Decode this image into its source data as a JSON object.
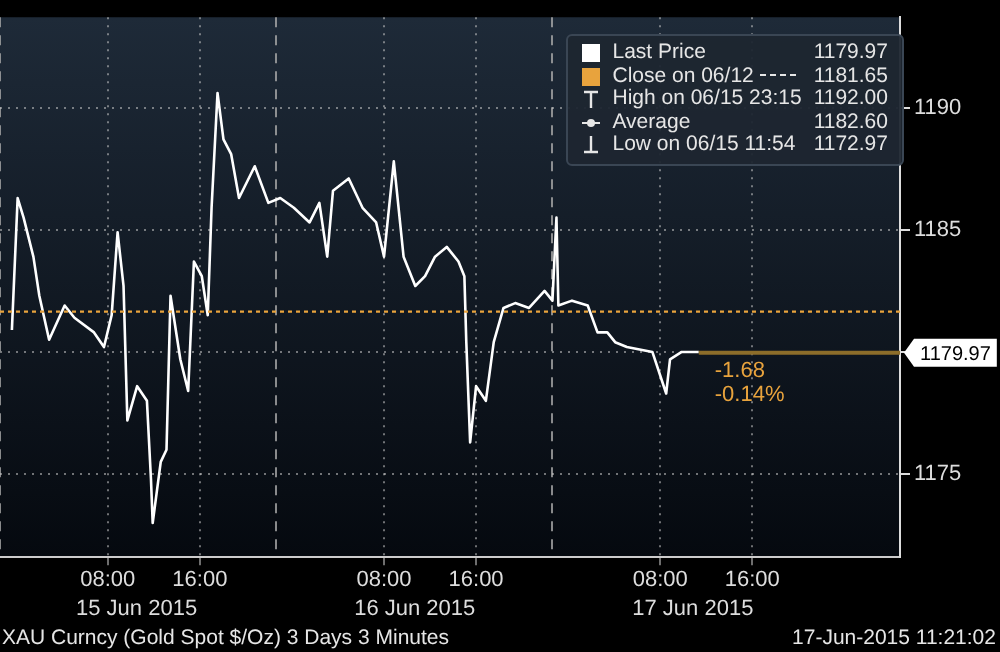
{
  "chart_data": {
    "type": "line",
    "title": "XAU Curncy (Gold Spot $/Oz) 3 Days 3 Minutes",
    "subtitle": "17-Jun-2015 11:21:02",
    "x": [
      "2015-06-14T23:40",
      "2015-06-15T00:10",
      "2015-06-15T00:41",
      "2015-06-15T01:32",
      "2015-06-15T02:03",
      "2015-06-15T02:54",
      "2015-06-15T04:15",
      "2015-06-15T05:06",
      "2015-06-15T06:48",
      "2015-06-15T07:40",
      "2015-06-15T08:20",
      "2015-06-15T08:51",
      "2015-06-15T09:22",
      "2015-06-15T09:42",
      "2015-06-15T10:33",
      "2015-06-15T11:24",
      "2015-06-15T11:45",
      "2015-06-15T11:54",
      "2015-06-15T12:36",
      "2015-06-15T13:06",
      "2015-06-15T13:27",
      "2015-06-15T14:18",
      "2015-06-15T14:59",
      "2015-06-15T15:29",
      "2015-06-15T16:10",
      "2015-06-15T16:41",
      "2015-06-15T17:01",
      "2015-06-15T17:32",
      "2015-06-15T18:03",
      "2015-06-15T18:43",
      "2015-06-15T19:24",
      "2015-06-15T20:46",
      "2015-06-15T21:57",
      "2015-06-15T22:59",
      "2015-06-16T00:10",
      "2015-06-16T01:32",
      "2015-06-16T02:23",
      "2015-06-16T03:04",
      "2015-06-16T03:34",
      "2015-06-16T04:56",
      "2015-06-16T06:08",
      "2015-06-16T07:19",
      "2015-06-16T08:00",
      "2015-06-16T08:51",
      "2015-06-16T09:42",
      "2015-06-16T10:43",
      "2015-06-16T11:34",
      "2015-06-16T12:26",
      "2015-06-16T13:27",
      "2015-06-16T14:28",
      "2015-06-16T14:59",
      "2015-06-16T15:09",
      "2015-06-16T15:29",
      "2015-06-16T16:00",
      "2015-06-16T16:51",
      "2015-06-16T17:32",
      "2015-06-16T18:23",
      "2015-06-16T19:24",
      "2015-06-16T20:36",
      "2015-06-16T21:57",
      "2015-06-16T22:38",
      "2015-06-16T22:59",
      "2015-06-16T23:09",
      "2015-06-17T00:20",
      "2015-06-17T01:42",
      "2015-06-17T02:33",
      "2015-06-17T03:24",
      "2015-06-17T04:05",
      "2015-06-17T05:06",
      "2015-06-17T07:19",
      "2015-06-17T08:31",
      "2015-06-17T08:51",
      "2015-06-17T09:52",
      "2015-06-17T11:21"
    ],
    "series": [
      {
        "name": "Last Price",
        "color": "#ffffff",
        "values": [
          1180.9,
          1186.3,
          1185.5,
          1183.9,
          1182.3,
          1180.5,
          1181.9,
          1181.4,
          1180.8,
          1180.2,
          1181.5,
          1184.9,
          1182.7,
          1177.2,
          1178.6,
          1178.0,
          1174.8,
          1173.0,
          1175.5,
          1176.0,
          1182.3,
          1179.7,
          1178.4,
          1183.7,
          1183.1,
          1181.5,
          1185.9,
          1190.6,
          1188.7,
          1188.1,
          1186.3,
          1187.6,
          1186.1,
          1186.3,
          1185.9,
          1185.3,
          1186.1,
          1183.9,
          1186.6,
          1187.1,
          1185.9,
          1185.3,
          1183.9,
          1187.8,
          1183.9,
          1182.7,
          1183.1,
          1183.9,
          1184.3,
          1183.7,
          1183.1,
          1180.4,
          1176.3,
          1178.6,
          1178.0,
          1180.4,
          1181.8,
          1182.0,
          1181.8,
          1182.5,
          1182.1,
          1185.5,
          1181.9,
          1182.1,
          1181.9,
          1180.8,
          1180.8,
          1180.4,
          1180.2,
          1180.0,
          1178.3,
          1179.7,
          1180.0,
          1180.0
        ]
      }
    ],
    "xlim": [
      "2015-06-14T22:38",
      "2015-06-18T04:50"
    ],
    "xticks": [
      {
        "value": "2015-06-15T08:00",
        "label": "08:00"
      },
      {
        "value": "2015-06-15T16:00",
        "label": "16:00"
      },
      {
        "value": "2015-06-16T08:00",
        "label": "08:00"
      },
      {
        "value": "2015-06-16T16:00",
        "label": "16:00"
      },
      {
        "value": "2015-06-17T08:00",
        "label": "08:00"
      },
      {
        "value": "2015-06-17T16:00",
        "label": "16:00"
      }
    ],
    "x2lim": [
      "2015-06-14T22:38",
      "2015-06-18T04:50"
    ],
    "x2ticks": [
      {
        "value": "2015-06-14T22:38",
        "label": null
      },
      {
        "value": "2015-06-15T10:30",
        "label": "15 Jun 2015"
      },
      {
        "value": "2015-06-15T22:38",
        "label": null
      },
      {
        "value": "2015-06-16T10:40",
        "label": "16 Jun 2015"
      },
      {
        "value": "2015-06-16T22:38",
        "label": null
      },
      {
        "value": "2015-06-17T10:50",
        "label": "17 Jun 2015"
      }
    ],
    "ylim": [
      1171.6,
      1193.7
    ],
    "yticks": [
      1175,
      {
        "value": 1180,
        "label": null
      },
      1185,
      1190
    ],
    "grid": true,
    "legend": "top right",
    "marker": "none",
    "line_style": "solid",
    "ref_lines": [
      {
        "axis": "y",
        "value": 1181.65,
        "label": "Close on 06/12",
        "color": "#e8a33d",
        "line_style": "dotted"
      },
      {
        "axis": "y",
        "value": 1179.97,
        "label": "1179.97",
        "color": "#8c6d2a",
        "line_style": "solid"
      }
    ],
    "annotations": [
      "1179.97",
      "1181.65",
      "High on 06/15 23:15",
      "1192.00",
      "Average",
      "1182.60",
      "Low on 06/15 11:54",
      "1172.97",
      {
        "text": "-1.68",
        "x": "2015-06-17T11:21",
        "y": 1179.97
      },
      {
        "text": "-0.14%",
        "x": "2015-06-17T11:21",
        "y": 1179.97
      }
    ]
  }
}
